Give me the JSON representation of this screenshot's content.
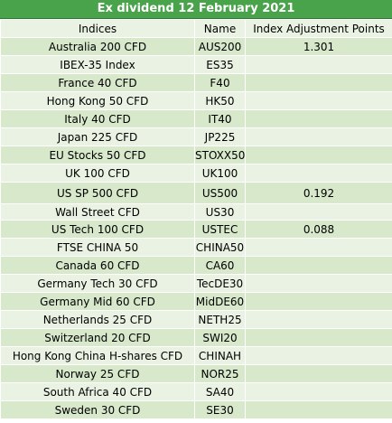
{
  "title": "Ex dividend 12 February 2021",
  "headers": {
    "indices": "Indices",
    "name": "Name",
    "points": "Index Adjustment Points"
  },
  "rows": [
    {
      "index": "Australia 200 CFD",
      "name": "AUS200",
      "points": "1.301"
    },
    {
      "index": "IBEX-35 Index",
      "name": "ES35",
      "points": ""
    },
    {
      "index": "France 40 CFD",
      "name": "F40",
      "points": ""
    },
    {
      "index": "Hong Kong 50 CFD",
      "name": "HK50",
      "points": ""
    },
    {
      "index": "Italy 40 CFD",
      "name": "IT40",
      "points": ""
    },
    {
      "index": "Japan 225 CFD",
      "name": "JP225",
      "points": ""
    },
    {
      "index": "EU Stocks 50 CFD",
      "name": "STOXX50",
      "points": ""
    },
    {
      "index": "UK 100 CFD",
      "name": "UK100",
      "points": ""
    },
    {
      "index": "US SP 500 CFD",
      "name": "US500",
      "points": "0.192"
    },
    {
      "index": "Wall Street CFD",
      "name": "US30",
      "points": ""
    },
    {
      "index": "US Tech 100 CFD",
      "name": "USTEC",
      "points": "0.088"
    },
    {
      "index": "FTSE CHINA 50",
      "name": "CHINA50",
      "points": ""
    },
    {
      "index": "Canada 60 CFD",
      "name": "CA60",
      "points": ""
    },
    {
      "index": "Germany Tech 30 CFD",
      "name": "TecDE30",
      "points": ""
    },
    {
      "index": "Germany Mid 60 CFD",
      "name": "MidDE60",
      "points": ""
    },
    {
      "index": "Netherlands 25 CFD",
      "name": "NETH25",
      "points": ""
    },
    {
      "index": "Switzerland 20 CFD",
      "name": "SWI20",
      "points": ""
    },
    {
      "index": "Hong Kong China H-shares CFD",
      "name": "CHINAH",
      "points": ""
    },
    {
      "index": "Norway 25 CFD",
      "name": "NOR25",
      "points": ""
    },
    {
      "index": "South Africa 40 CFD",
      "name": "SA40",
      "points": ""
    },
    {
      "index": "Sweden 30 CFD",
      "name": "SE30",
      "points": ""
    }
  ],
  "colors": {
    "header_green": "#48a34a",
    "row_light": "#eaf3e3",
    "row_dark": "#d7e8cb"
  }
}
